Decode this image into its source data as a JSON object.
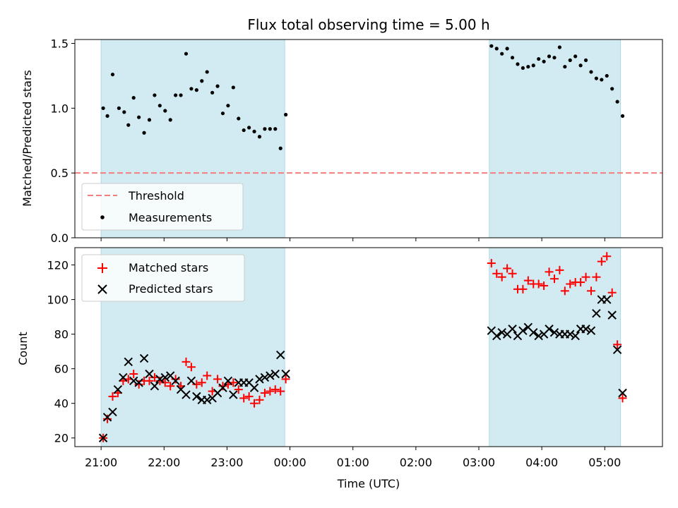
{
  "chart_data": [
    {
      "type": "scatter",
      "title": "Flux total observing time = 5.00 h",
      "xlabel": "",
      "ylabel": "Matched/Predicted stars",
      "ylim": [
        0,
        1.53
      ],
      "yticks": [
        "0.0",
        "0.5",
        "1.0",
        "1.5"
      ],
      "x_range": [
        "20:35",
        "05:55"
      ],
      "shaded_intervals": [
        [
          "21:00",
          "23:55"
        ],
        [
          "03:10",
          "05:15"
        ]
      ],
      "shade_color": "#add8e6",
      "legend": {
        "position": "lower-left",
        "entries": [
          "Threshold",
          "Measurements"
        ]
      },
      "series": [
        {
          "name": "Threshold",
          "kind": "dashed-line",
          "color": "#f08080",
          "value": 0.5
        },
        {
          "name": "Measurements",
          "kind": "points",
          "color": "#000000",
          "points": [
            [
              "21:02",
              1.0
            ],
            [
              "21:06",
              0.94
            ],
            [
              "21:11",
              1.26
            ],
            [
              "21:17",
              1.0
            ],
            [
              "21:22",
              0.97
            ],
            [
              "21:26",
              0.87
            ],
            [
              "21:31",
              1.08
            ],
            [
              "21:36",
              0.93
            ],
            [
              "21:41",
              0.81
            ],
            [
              "21:46",
              0.91
            ],
            [
              "21:51",
              1.1
            ],
            [
              "21:56",
              1.02
            ],
            [
              "22:01",
              0.98
            ],
            [
              "22:06",
              0.91
            ],
            [
              "22:11",
              1.1
            ],
            [
              "22:16",
              1.1
            ],
            [
              "22:21",
              1.42
            ],
            [
              "22:26",
              1.15
            ],
            [
              "22:31",
              1.14
            ],
            [
              "22:36",
              1.21
            ],
            [
              "22:41",
              1.28
            ],
            [
              "22:46",
              1.12
            ],
            [
              "22:51",
              1.17
            ],
            [
              "22:56",
              0.96
            ],
            [
              "23:01",
              1.02
            ],
            [
              "23:06",
              1.16
            ],
            [
              "23:11",
              0.92
            ],
            [
              "23:16",
              0.83
            ],
            [
              "23:21",
              0.85
            ],
            [
              "23:26",
              0.82
            ],
            [
              "23:31",
              0.78
            ],
            [
              "23:36",
              0.84
            ],
            [
              "23:41",
              0.84
            ],
            [
              "23:46",
              0.84
            ],
            [
              "23:51",
              0.69
            ],
            [
              "23:56",
              0.95
            ],
            [
              "03:12",
              1.48
            ],
            [
              "03:17",
              1.46
            ],
            [
              "03:22",
              1.42
            ],
            [
              "03:27",
              1.46
            ],
            [
              "03:32",
              1.39
            ],
            [
              "03:37",
              1.34
            ],
            [
              "03:42",
              1.31
            ],
            [
              "03:47",
              1.32
            ],
            [
              "03:52",
              1.33
            ],
            [
              "03:57",
              1.38
            ],
            [
              "04:02",
              1.36
            ],
            [
              "04:07",
              1.4
            ],
            [
              "04:12",
              1.39
            ],
            [
              "04:17",
              1.47
            ],
            [
              "04:22",
              1.32
            ],
            [
              "04:27",
              1.37
            ],
            [
              "04:32",
              1.4
            ],
            [
              "04:37",
              1.33
            ],
            [
              "04:42",
              1.37
            ],
            [
              "04:47",
              1.28
            ],
            [
              "04:52",
              1.23
            ],
            [
              "04:57",
              1.22
            ],
            [
              "05:02",
              1.25
            ],
            [
              "05:07",
              1.15
            ],
            [
              "05:12",
              1.05
            ],
            [
              "05:17",
              0.94
            ]
          ]
        }
      ]
    },
    {
      "type": "scatter",
      "title": "",
      "xlabel": "Time (UTC)",
      "ylabel": "Count",
      "ylim": [
        15,
        130
      ],
      "yticks": [
        "20",
        "40",
        "60",
        "80",
        "100",
        "120"
      ],
      "xticks": [
        "21:00",
        "22:00",
        "23:00",
        "00:00",
        "01:00",
        "02:00",
        "03:00",
        "04:00",
        "05:00"
      ],
      "x_range": [
        "20:35",
        "05:55"
      ],
      "shaded_intervals": [
        [
          "21:00",
          "23:55"
        ],
        [
          "03:10",
          "05:15"
        ]
      ],
      "shade_color": "#add8e6",
      "legend": {
        "position": "upper-left",
        "entries": [
          "Matched stars",
          "Predicted stars"
        ]
      },
      "series": [
        {
          "name": "Matched stars",
          "kind": "plus",
          "color": "#ff0000",
          "points": [
            [
              "21:02",
              20
            ],
            [
              "21:06",
              31
            ],
            [
              "21:11",
              44
            ],
            [
              "21:16",
              46
            ],
            [
              "21:21",
              53
            ],
            [
              "21:26",
              54
            ],
            [
              "21:31",
              57
            ],
            [
              "21:36",
              51
            ],
            [
              "21:41",
              53
            ],
            [
              "21:46",
              53
            ],
            [
              "21:51",
              55
            ],
            [
              "21:56",
              53
            ],
            [
              "22:01",
              52
            ],
            [
              "22:06",
              50
            ],
            [
              "22:11",
              54
            ],
            [
              "22:16",
              50
            ],
            [
              "22:21",
              64
            ],
            [
              "22:26",
              61
            ],
            [
              "22:31",
              51
            ],
            [
              "22:36",
              52
            ],
            [
              "22:41",
              56
            ],
            [
              "22:46",
              47
            ],
            [
              "22:51",
              54
            ],
            [
              "22:56",
              50
            ],
            [
              "23:01",
              51
            ],
            [
              "23:06",
              52
            ],
            [
              "23:11",
              48
            ],
            [
              "23:16",
              43
            ],
            [
              "23:21",
              44
            ],
            [
              "23:26",
              40
            ],
            [
              "23:31",
              42
            ],
            [
              "23:36",
              46
            ],
            [
              "23:41",
              47
            ],
            [
              "23:46",
              48
            ],
            [
              "23:51",
              47
            ],
            [
              "23:56",
              54
            ],
            [
              "03:12",
              121
            ],
            [
              "03:17",
              115
            ],
            [
              "03:22",
              113
            ],
            [
              "03:27",
              118
            ],
            [
              "03:32",
              115
            ],
            [
              "03:37",
              106
            ],
            [
              "03:42",
              106
            ],
            [
              "03:47",
              111
            ],
            [
              "03:52",
              109
            ],
            [
              "03:57",
              109
            ],
            [
              "04:02",
              108
            ],
            [
              "04:07",
              116
            ],
            [
              "04:12",
              112
            ],
            [
              "04:17",
              117
            ],
            [
              "04:22",
              105
            ],
            [
              "04:27",
              109
            ],
            [
              "04:32",
              110
            ],
            [
              "04:37",
              110
            ],
            [
              "04:42",
              113
            ],
            [
              "04:47",
              105
            ],
            [
              "04:52",
              113
            ],
            [
              "04:57",
              122
            ],
            [
              "05:02",
              125
            ],
            [
              "05:07",
              104
            ],
            [
              "05:12",
              74
            ],
            [
              "05:17",
              43
            ]
          ]
        },
        {
          "name": "Predicted stars",
          "kind": "x",
          "color": "#000000",
          "points": [
            [
              "21:02",
              20
            ],
            [
              "21:06",
              32
            ],
            [
              "21:11",
              35
            ],
            [
              "21:16",
              48
            ],
            [
              "21:21",
              55
            ],
            [
              "21:26",
              64
            ],
            [
              "21:31",
              53
            ],
            [
              "21:36",
              52
            ],
            [
              "21:41",
              66
            ],
            [
              "21:46",
              57
            ],
            [
              "21:51",
              50
            ],
            [
              "21:56",
              54
            ],
            [
              "22:01",
              55
            ],
            [
              "22:06",
              56
            ],
            [
              "22:11",
              53
            ],
            [
              "22:16",
              48
            ],
            [
              "22:21",
              45
            ],
            [
              "22:26",
              53
            ],
            [
              "22:31",
              44
            ],
            [
              "22:36",
              42
            ],
            [
              "22:41",
              42
            ],
            [
              "22:46",
              43
            ],
            [
              "22:51",
              46
            ],
            [
              "22:56",
              49
            ],
            [
              "23:01",
              53
            ],
            [
              "23:06",
              45
            ],
            [
              "23:11",
              52
            ],
            [
              "23:16",
              52
            ],
            [
              "23:21",
              52
            ],
            [
              "23:26",
              49
            ],
            [
              "23:31",
              54
            ],
            [
              "23:36",
              55
            ],
            [
              "23:41",
              56
            ],
            [
              "23:46",
              57
            ],
            [
              "23:51",
              68
            ],
            [
              "23:56",
              57
            ],
            [
              "03:12",
              82
            ],
            [
              "03:17",
              79
            ],
            [
              "03:22",
              81
            ],
            [
              "03:27",
              80
            ],
            [
              "03:32",
              83
            ],
            [
              "03:37",
              79
            ],
            [
              "03:42",
              82
            ],
            [
              "03:47",
              84
            ],
            [
              "03:52",
              81
            ],
            [
              "03:57",
              79
            ],
            [
              "04:02",
              80
            ],
            [
              "04:07",
              83
            ],
            [
              "04:12",
              81
            ],
            [
              "04:17",
              80
            ],
            [
              "04:22",
              80
            ],
            [
              "04:27",
              80
            ],
            [
              "04:32",
              79
            ],
            [
              "04:37",
              83
            ],
            [
              "04:42",
              83
            ],
            [
              "04:47",
              82
            ],
            [
              "04:52",
              92
            ],
            [
              "04:57",
              100
            ],
            [
              "05:02",
              100
            ],
            [
              "05:07",
              91
            ],
            [
              "05:12",
              71
            ],
            [
              "05:17",
              46
            ]
          ]
        }
      ]
    }
  ]
}
